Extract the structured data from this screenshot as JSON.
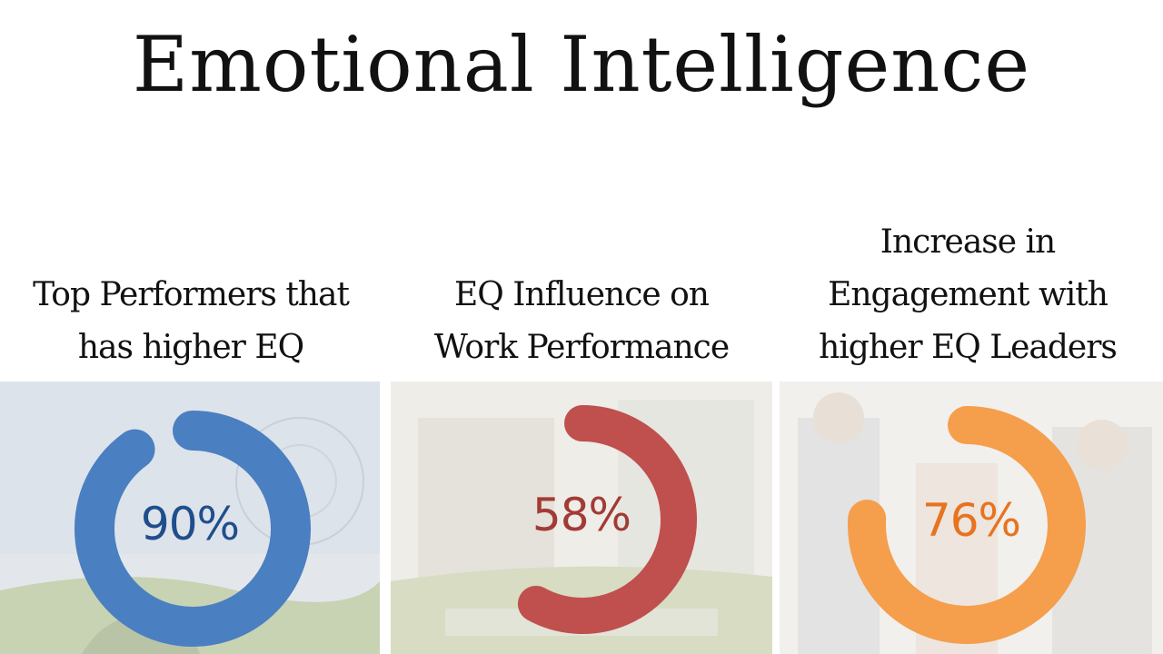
{
  "title": "Emotional Intelligence",
  "chart_data": [
    {
      "type": "pie",
      "labels": [
        "Top Performers that",
        "has higher EQ"
      ],
      "value": 90,
      "value_label": "90%",
      "color": "#4A7FC1",
      "text_color": "#1F4E8C"
    },
    {
      "type": "pie",
      "labels": [
        "EQ Influence on",
        "Work Performance"
      ],
      "value": 58,
      "value_label": "58%",
      "color": "#C0504D",
      "text_color": "#A33A36"
    },
    {
      "type": "pie",
      "labels": [
        "Increase in",
        "Engagement with",
        "higher EQ Leaders"
      ],
      "value": 76,
      "value_label": "76%",
      "color": "#F59E4C",
      "text_color": "#E8731F"
    }
  ]
}
